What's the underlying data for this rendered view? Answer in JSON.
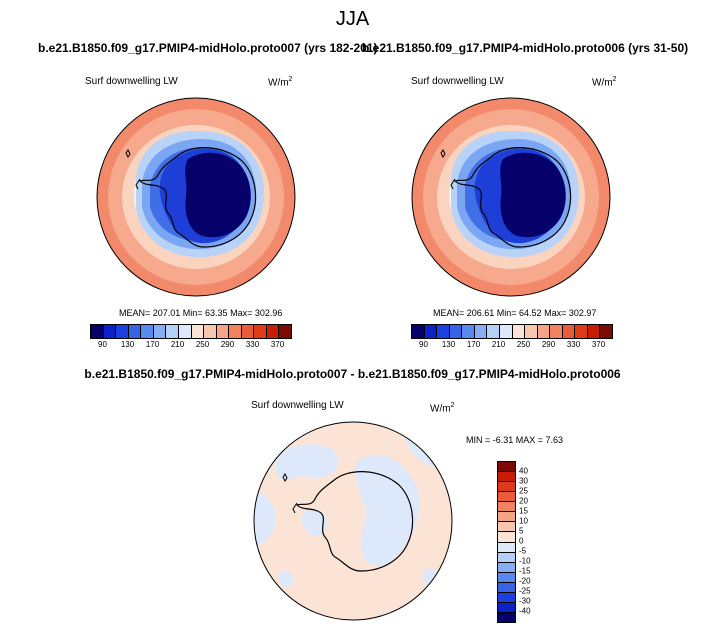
{
  "title": "JJA",
  "panels": [
    {
      "case": "b.e21.B1850.f09_g17.PMIP4-midHolo.proto007 (yrs 182-201)",
      "variable": "Surf downwelling LW",
      "units": "W/m",
      "units_exp": "2",
      "stats": "MEAN= 207.01  Min=  63.35  Max= 302.96"
    },
    {
      "case": "b.e21.B1850.f09_g17.PMIP4-midHolo.proto006 (yrs 31-50)",
      "variable": "Surf downwelling LW",
      "units": "W/m",
      "units_exp": "2",
      "stats": "MEAN= 206.61  Min=  64.52  Max= 302.97"
    }
  ],
  "diff": {
    "case": "b.e21.B1850.f09_g17.PMIP4-midHolo.proto007 - b.e21.B1850.f09_g17.PMIP4-midHolo.proto006",
    "variable": "Surf downwelling LW",
    "units": "W/m",
    "units_exp": "2",
    "stats": "MIN =  -6.31 MAX =   7.63"
  },
  "colorbar_abs": {
    "labels": [
      "90",
      "130",
      "170",
      "210",
      "250",
      "290",
      "330",
      "370"
    ],
    "colors": [
      "#08006a",
      "#0a22c8",
      "#1c3fe0",
      "#3565e6",
      "#5889ef",
      "#85aef5",
      "#b4d0f8",
      "#dde9fb",
      "#fbe4d6",
      "#f8c7ae",
      "#f5a586",
      "#f1825f",
      "#ea5b3a",
      "#de3918",
      "#c91c06",
      "#7a0a03"
    ]
  },
  "colorbar_diff": {
    "labels": [
      "40",
      "30",
      "25",
      "20",
      "15",
      "10",
      "5",
      "0",
      "-5",
      "-10",
      "-15",
      "-20",
      "-25",
      "-30",
      "-40"
    ],
    "colors": [
      "#7a0a03",
      "#c91c06",
      "#de3918",
      "#ea5b3a",
      "#f1825f",
      "#f5a586",
      "#f8c7ae",
      "#fbe4d6",
      "#dde9fb",
      "#b4d0f8",
      "#85aef5",
      "#5889ef",
      "#3565e6",
      "#1c3fe0",
      "#0a22c8",
      "#08006a"
    ]
  }
}
